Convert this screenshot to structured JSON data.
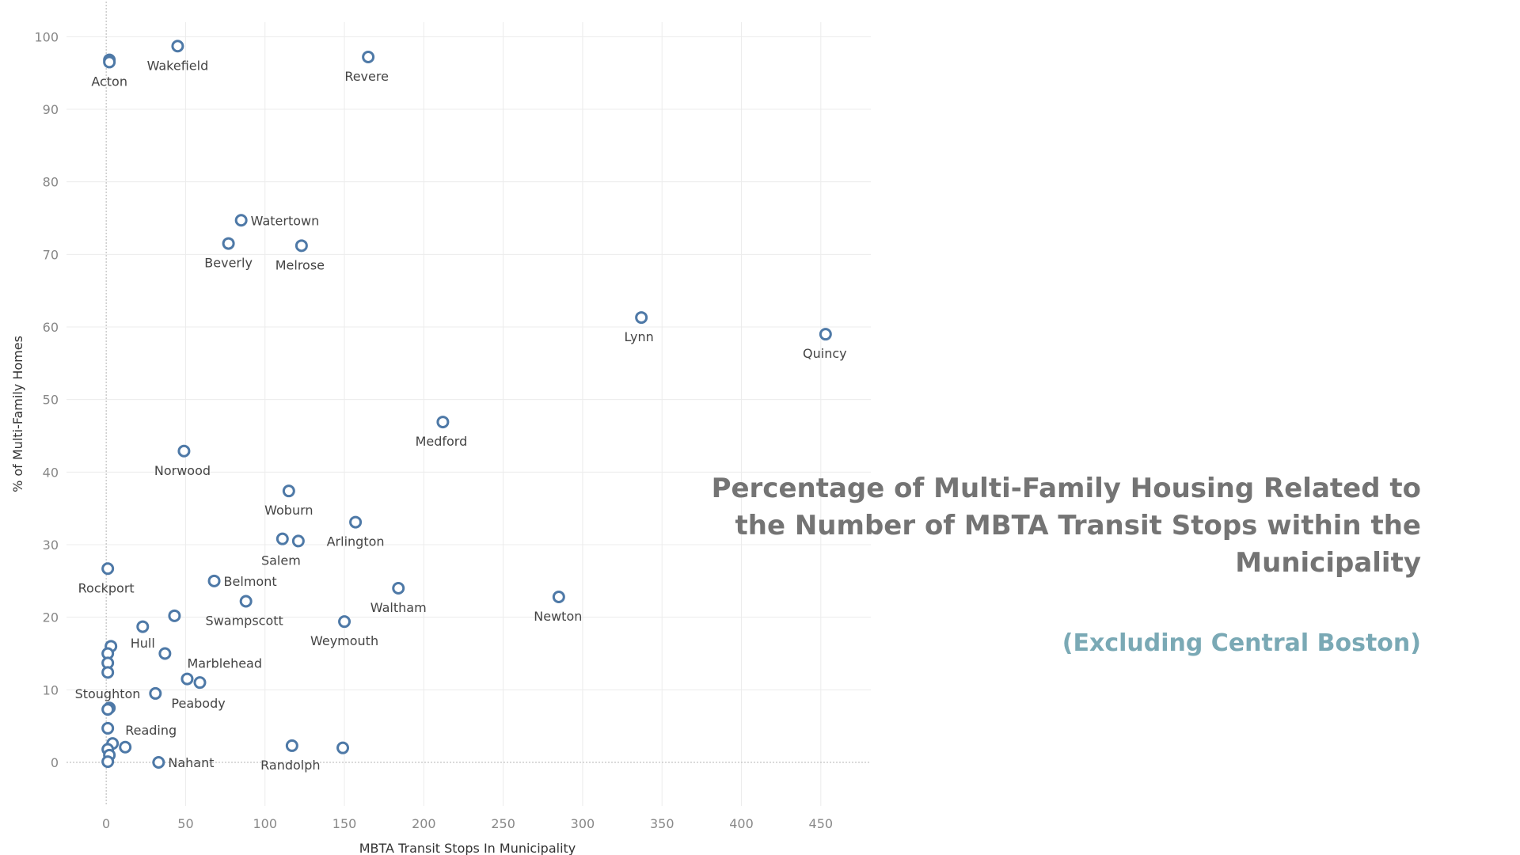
{
  "chart_data": {
    "type": "scatter",
    "title": "Percentage of Multi-Family Housing Related to the Number of MBTA Transit Stops within the Municipality",
    "subtitle": "(Excluding Central Boston)",
    "xlabel": "MBTA Transit Stops In Municipality",
    "ylabel": "% of Multi-Family Homes",
    "xlim": [
      -25,
      480
    ],
    "ylim": [
      -6,
      102
    ],
    "xticks": [
      0,
      50,
      100,
      150,
      200,
      250,
      300,
      350,
      400,
      450
    ],
    "yticks": [
      0,
      10,
      20,
      30,
      40,
      50,
      60,
      70,
      80,
      90,
      100
    ],
    "grid": true,
    "marker_color": "#4e79a7",
    "points": [
      {
        "x": 2,
        "y": 96.8,
        "label": ""
      },
      {
        "x": 2,
        "y": 96.5,
        "label": "Acton"
      },
      {
        "x": 45,
        "y": 98.7,
        "label": "Wakefield"
      },
      {
        "x": 165,
        "y": 97.2,
        "label": "Revere"
      },
      {
        "x": 85,
        "y": 74.7,
        "label": "Watertown"
      },
      {
        "x": 77,
        "y": 71.5,
        "label": "Beverly"
      },
      {
        "x": 123,
        "y": 71.2,
        "label": "Melrose"
      },
      {
        "x": 337,
        "y": 61.3,
        "label": "Lynn"
      },
      {
        "x": 453,
        "y": 59.0,
        "label": "Quincy"
      },
      {
        "x": 212,
        "y": 46.9,
        "label": "Medford"
      },
      {
        "x": 49,
        "y": 42.9,
        "label": "Norwood"
      },
      {
        "x": 115,
        "y": 37.4,
        "label": "Woburn"
      },
      {
        "x": 157,
        "y": 33.1,
        "label": "Arlington"
      },
      {
        "x": 111,
        "y": 30.8,
        "label": ""
      },
      {
        "x": 121,
        "y": 30.5,
        "label": "Salem"
      },
      {
        "x": 1,
        "y": 26.7,
        "label": "Rockport"
      },
      {
        "x": 68,
        "y": 25.0,
        "label": "Belmont"
      },
      {
        "x": 184,
        "y": 24.0,
        "label": "Waltham"
      },
      {
        "x": 285,
        "y": 22.8,
        "label": "Newton"
      },
      {
        "x": 88,
        "y": 22.2,
        "label": "Swampscott"
      },
      {
        "x": 43,
        "y": 20.2,
        "label": ""
      },
      {
        "x": 150,
        "y": 19.4,
        "label": "Weymouth"
      },
      {
        "x": 23,
        "y": 18.7,
        "label": "Hull"
      },
      {
        "x": 3,
        "y": 16.0,
        "label": ""
      },
      {
        "x": 1,
        "y": 15.0,
        "label": ""
      },
      {
        "x": 37,
        "y": 15.0,
        "label": "Marblehead"
      },
      {
        "x": 1,
        "y": 13.7,
        "label": ""
      },
      {
        "x": 1,
        "y": 12.4,
        "label": ""
      },
      {
        "x": 51,
        "y": 11.5,
        "label": ""
      },
      {
        "x": 59,
        "y": 11.0,
        "label": "Peabody"
      },
      {
        "x": 31,
        "y": 9.5,
        "label": "Stoughton"
      },
      {
        "x": 2,
        "y": 7.5,
        "label": ""
      },
      {
        "x": 1,
        "y": 7.3,
        "label": ""
      },
      {
        "x": 1,
        "y": 4.7,
        "label": "Reading"
      },
      {
        "x": 4,
        "y": 2.6,
        "label": ""
      },
      {
        "x": 12,
        "y": 2.1,
        "label": ""
      },
      {
        "x": 1,
        "y": 1.8,
        "label": ""
      },
      {
        "x": 2,
        "y": 1.0,
        "label": ""
      },
      {
        "x": 1,
        "y": 0.1,
        "label": ""
      },
      {
        "x": 33,
        "y": 0.0,
        "label": "Nahant"
      },
      {
        "x": 117,
        "y": 2.3,
        "label": "Randolph"
      },
      {
        "x": 149,
        "y": 2.0,
        "label": ""
      }
    ]
  }
}
